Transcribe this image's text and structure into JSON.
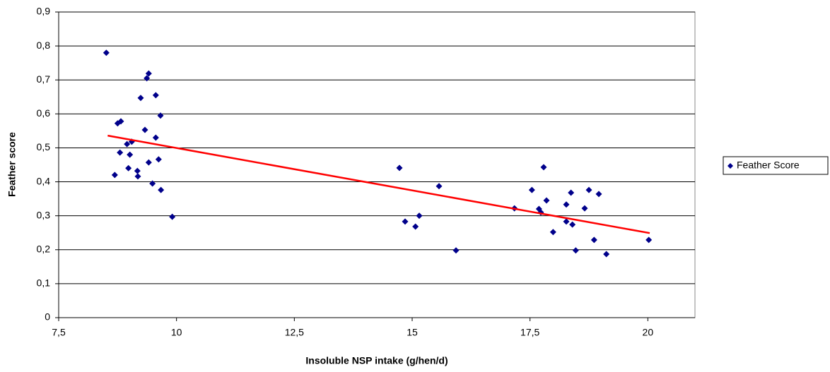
{
  "chart_data": {
    "type": "scatter",
    "x_label": "Insoluble NSP intake (g/hen/d)",
    "y_label": "Feather score",
    "series": [
      {
        "name": "Feather Score",
        "color": "#00008b",
        "x": [
          8.51,
          8.69,
          8.75,
          8.82,
          8.8,
          8.95,
          8.98,
          9.01,
          9.05,
          9.17,
          9.18,
          9.24,
          9.33,
          9.37,
          9.41,
          9.41,
          9.49,
          9.56,
          9.56,
          9.62,
          9.66,
          9.67,
          9.91,
          14.73,
          14.85,
          15.07,
          15.15,
          15.57,
          15.93,
          17.17,
          17.54,
          17.69,
          17.73,
          17.79,
          17.85,
          17.99,
          18.27,
          18.37,
          18.27,
          18.4,
          18.47,
          18.66,
          18.75,
          18.86,
          18.96,
          19.12,
          20.02
        ],
        "values": [
          0.78,
          0.42,
          0.572,
          0.578,
          0.486,
          0.511,
          0.44,
          0.48,
          0.518,
          0.432,
          0.416,
          0.647,
          0.553,
          0.705,
          0.719,
          0.457,
          0.395,
          0.655,
          0.53,
          0.466,
          0.595,
          0.376,
          0.297,
          0.441,
          0.283,
          0.268,
          0.3,
          0.387,
          0.198,
          0.322,
          0.376,
          0.32,
          0.31,
          0.443,
          0.345,
          0.252,
          0.333,
          0.368,
          0.283,
          0.274,
          0.198,
          0.322,
          0.376,
          0.229,
          0.364,
          0.187,
          0.229
        ]
      }
    ],
    "trendline": {
      "color": "#ff0000",
      "x": [
        8.54,
        20.04
      ],
      "values": [
        0.536,
        0.249
      ]
    },
    "xlim": [
      7.5,
      21
    ],
    "xticks": [
      {
        "value": 7.5,
        "label": "7,5"
      },
      10,
      {
        "value": 12.5,
        "label": "12,5"
      },
      15,
      {
        "value": 17.5,
        "label": "17,5"
      },
      20
    ],
    "ylim": [
      0,
      0.9
    ],
    "yticks": [
      0,
      {
        "value": 0.1,
        "label": "0,1"
      },
      {
        "value": 0.2,
        "label": "0,2"
      },
      {
        "value": 0.3,
        "label": "0,3"
      },
      {
        "value": 0.4,
        "label": "0,4"
      },
      {
        "value": 0.5,
        "label": "0,5"
      },
      {
        "value": 0.6,
        "label": "0,6"
      },
      {
        "value": 0.7,
        "label": "0,7"
      },
      {
        "value": 0.8,
        "label": "0,8"
      },
      {
        "value": 0.9,
        "label": "0,9"
      }
    ],
    "grid": true,
    "legend": "right"
  }
}
